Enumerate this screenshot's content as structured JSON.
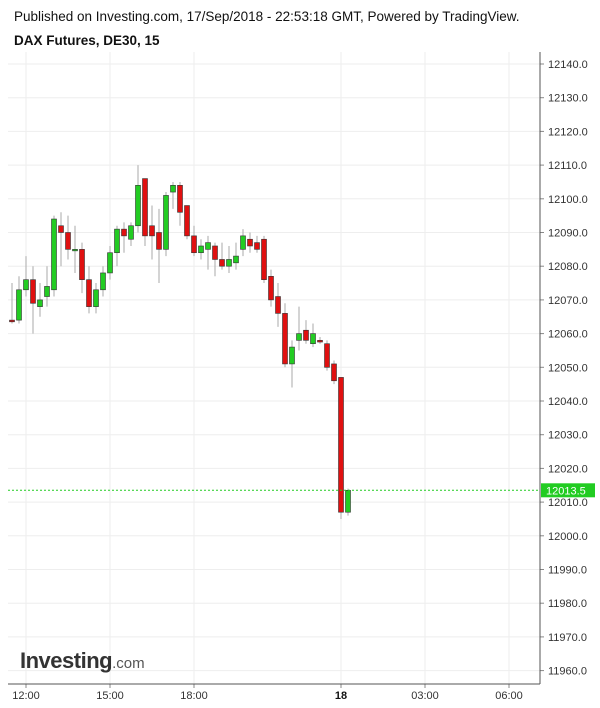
{
  "header": {
    "published": "Published on Investing.com, 17/Sep/2018 - 22:53:18 GMT, Powered by TradingView.",
    "instrument": "DAX Futures, DE30, 15"
  },
  "logo": {
    "main": "Investing",
    "suffix": ".com"
  },
  "colors": {
    "up": "#22cc22",
    "down": "#e01010",
    "wick": "#aaaaaa",
    "grid": "#eeeeee",
    "current_price": "#22cc22"
  },
  "chart_data": {
    "type": "candlestick",
    "ylim": [
      11955,
      12142
    ],
    "y_ticks": [
      11960,
      11970,
      11980,
      11990,
      12000,
      12010,
      12020,
      12030,
      12040,
      12050,
      12060,
      12070,
      12080,
      12090,
      12100,
      12110,
      12120,
      12130,
      12140
    ],
    "y_tick_labels": [
      "11960.0",
      "11970.0",
      "11980.0",
      "11990.0",
      "12000.0",
      "12010.0",
      "12020.0",
      "12030.0",
      "12040.0",
      "12050.0",
      "12060.0",
      "12070.0",
      "12080.0",
      "12090.0",
      "12100.0",
      "12110.0",
      "12120.0",
      "12130.0",
      "12140.0"
    ],
    "x_ticks": [
      {
        "label": "12:00",
        "bar": 2,
        "bold": false
      },
      {
        "label": "15:00",
        "bar": 14,
        "bold": false
      },
      {
        "label": "18:00",
        "bar": 26,
        "bold": false
      },
      {
        "label": "18",
        "bar": 47,
        "bold": true
      },
      {
        "label": "03:00",
        "bar": 59,
        "bold": false
      },
      {
        "label": "06:00",
        "bar": 71,
        "bold": false
      }
    ],
    "current_price": 12013.5,
    "current_price_label": "12013.5",
    "candles": [
      {
        "o": 12064,
        "h": 12075,
        "l": 12063,
        "c": 12063.5
      },
      {
        "o": 12064,
        "h": 12077,
        "l": 12063,
        "c": 12073
      },
      {
        "o": 12073,
        "h": 12083,
        "l": 12071,
        "c": 12076
      },
      {
        "o": 12076,
        "h": 12080,
        "l": 12060,
        "c": 12069
      },
      {
        "o": 12068,
        "h": 12075,
        "l": 12065,
        "c": 12070
      },
      {
        "o": 12071,
        "h": 12080,
        "l": 12068,
        "c": 12074
      },
      {
        "o": 12073,
        "h": 12095,
        "l": 12071,
        "c": 12094
      },
      {
        "o": 12092,
        "h": 12096,
        "l": 12080,
        "c": 12090
      },
      {
        "o": 12090,
        "h": 12095,
        "l": 12082,
        "c": 12085
      },
      {
        "o": 12085,
        "h": 12092,
        "l": 12078,
        "c": 12085
      },
      {
        "o": 12085,
        "h": 12087,
        "l": 12072,
        "c": 12076
      },
      {
        "o": 12076,
        "h": 12080,
        "l": 12066,
        "c": 12068
      },
      {
        "o": 12068,
        "h": 12075,
        "l": 12066,
        "c": 12073
      },
      {
        "o": 12073,
        "h": 12080,
        "l": 12071,
        "c": 12078
      },
      {
        "o": 12078,
        "h": 12086,
        "l": 12076,
        "c": 12084
      },
      {
        "o": 12084,
        "h": 12092,
        "l": 12080,
        "c": 12091
      },
      {
        "o": 12091,
        "h": 12093,
        "l": 12084,
        "c": 12089
      },
      {
        "o": 12088,
        "h": 12093,
        "l": 12086,
        "c": 12092
      },
      {
        "o": 12092,
        "h": 12110,
        "l": 12090,
        "c": 12104
      },
      {
        "o": 12106,
        "h": 12106,
        "l": 12086,
        "c": 12089
      },
      {
        "o": 12092,
        "h": 12098,
        "l": 12082,
        "c": 12089
      },
      {
        "o": 12090,
        "h": 12097,
        "l": 12075,
        "c": 12085
      },
      {
        "o": 12085,
        "h": 12102,
        "l": 12083,
        "c": 12101
      },
      {
        "o": 12102,
        "h": 12105,
        "l": 12097,
        "c": 12104
      },
      {
        "o": 12104,
        "h": 12105,
        "l": 12092,
        "c": 12096
      },
      {
        "o": 12098,
        "h": 12098,
        "l": 12088,
        "c": 12089
      },
      {
        "o": 12089,
        "h": 12092,
        "l": 12083,
        "c": 12084
      },
      {
        "o": 12084,
        "h": 12088,
        "l": 12082,
        "c": 12086
      },
      {
        "o": 12085,
        "h": 12089,
        "l": 12079,
        "c": 12087
      },
      {
        "o": 12086,
        "h": 12087,
        "l": 12077,
        "c": 12082
      },
      {
        "o": 12082,
        "h": 12087,
        "l": 12079,
        "c": 12080
      },
      {
        "o": 12080,
        "h": 12086,
        "l": 12078,
        "c": 12082
      },
      {
        "o": 12081,
        "h": 12087,
        "l": 12079,
        "c": 12083
      },
      {
        "o": 12085,
        "h": 12091,
        "l": 12083,
        "c": 12089
      },
      {
        "o": 12088,
        "h": 12090,
        "l": 12084,
        "c": 12086
      },
      {
        "o": 12087,
        "h": 12089,
        "l": 12084,
        "c": 12085
      },
      {
        "o": 12088,
        "h": 12089,
        "l": 12075,
        "c": 12076
      },
      {
        "o": 12077,
        "h": 12079,
        "l": 12068,
        "c": 12070
      },
      {
        "o": 12071,
        "h": 12075,
        "l": 12062,
        "c": 12066
      },
      {
        "o": 12066,
        "h": 12069,
        "l": 12050,
        "c": 12051
      },
      {
        "o": 12051,
        "h": 12058,
        "l": 12044,
        "c": 12056
      },
      {
        "o": 12058,
        "h": 12068,
        "l": 12055,
        "c": 12060
      },
      {
        "o": 12061,
        "h": 12064,
        "l": 12057,
        "c": 12058
      },
      {
        "o": 12057,
        "h": 12063,
        "l": 12056,
        "c": 12060
      },
      {
        "o": 12058,
        "h": 12059,
        "l": 12057,
        "c": 12057.5
      },
      {
        "o": 12057,
        "h": 12058,
        "l": 12049,
        "c": 12050
      },
      {
        "o": 12051,
        "h": 12052,
        "l": 12045,
        "c": 12046
      },
      {
        "o": 12047,
        "h": 12047,
        "l": 12005,
        "c": 12007
      },
      {
        "o": 12007,
        "h": 12014,
        "l": 12006,
        "c": 12013.5
      }
    ]
  }
}
